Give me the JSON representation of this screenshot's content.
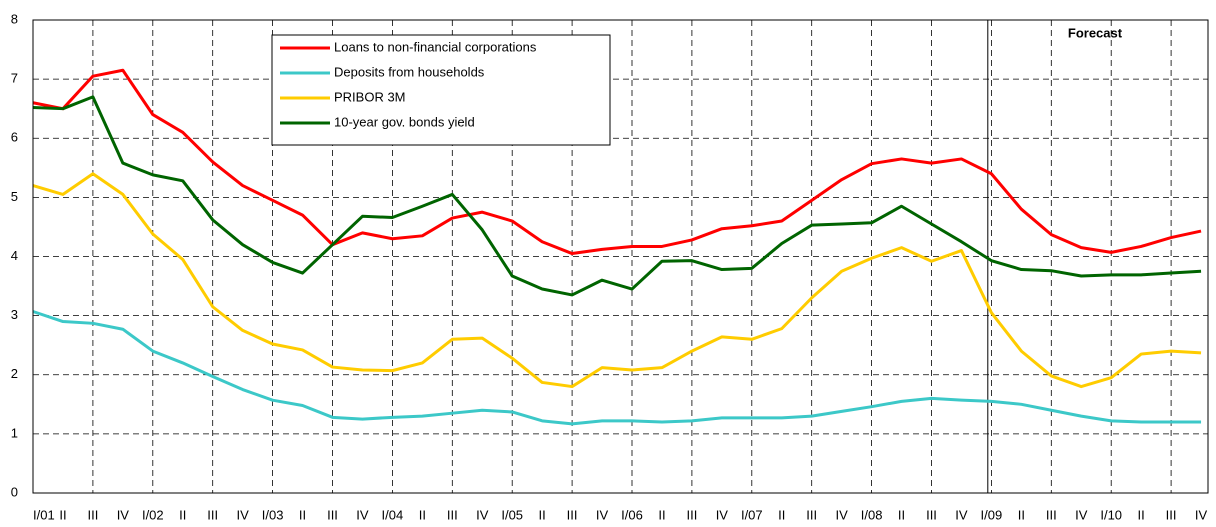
{
  "chart_data": {
    "type": "line",
    "categories": [
      "I/01",
      "II",
      "III",
      "IV",
      "I/02",
      "II",
      "III",
      "IV",
      "I/03",
      "II",
      "III",
      "IV",
      "I/04",
      "II",
      "III",
      "IV",
      "I/05",
      "II",
      "III",
      "IV",
      "I/06",
      "II",
      "III",
      "IV",
      "I/07",
      "II",
      "III",
      "IV",
      "I/08",
      "II",
      "III",
      "IV",
      "I/09",
      "II",
      "III",
      "IV",
      "I/10",
      "II",
      "III",
      "IV"
    ],
    "series": [
      {
        "name": "Loans to non-financial corporations",
        "color": "#ff0000",
        "values": [
          6.6,
          6.5,
          7.05,
          7.15,
          6.4,
          6.1,
          5.6,
          5.2,
          4.95,
          4.7,
          4.2,
          4.4,
          4.3,
          4.35,
          4.65,
          4.75,
          4.6,
          4.25,
          4.05,
          4.12,
          4.17,
          4.17,
          4.28,
          4.47,
          4.52,
          4.6,
          4.95,
          5.3,
          5.57,
          5.65,
          5.58,
          5.65,
          5.4,
          4.8,
          4.37,
          4.15,
          4.07,
          4.17,
          4.32,
          4.43
        ]
      },
      {
        "name": "Deposits from households",
        "color": "#3cc8c8",
        "values": [
          3.07,
          2.9,
          2.87,
          2.77,
          2.4,
          2.2,
          1.97,
          1.75,
          1.57,
          1.48,
          1.28,
          1.25,
          1.28,
          1.3,
          1.35,
          1.4,
          1.37,
          1.22,
          1.17,
          1.22,
          1.22,
          1.2,
          1.22,
          1.27,
          1.27,
          1.27,
          1.3,
          1.38,
          1.46,
          1.55,
          1.6,
          1.57,
          1.55,
          1.5,
          1.4,
          1.3,
          1.22,
          1.2,
          1.2,
          1.2
        ]
      },
      {
        "name": "PRIBOR 3M",
        "color": "#ffcc00",
        "values": [
          5.2,
          5.05,
          5.4,
          5.05,
          4.38,
          3.95,
          3.15,
          2.75,
          2.52,
          2.42,
          2.13,
          2.08,
          2.07,
          2.2,
          2.6,
          2.62,
          2.28,
          1.87,
          1.8,
          2.12,
          2.08,
          2.12,
          2.4,
          2.64,
          2.6,
          2.78,
          3.3,
          3.75,
          3.97,
          4.15,
          3.92,
          4.1,
          3.05,
          2.4,
          1.98,
          1.8,
          1.95,
          2.35,
          2.4,
          2.37
        ]
      },
      {
        "name": "10-year gov. bonds yield",
        "color": "#006400",
        "values": [
          6.52,
          6.5,
          6.7,
          5.58,
          5.38,
          5.28,
          4.62,
          4.2,
          3.9,
          3.72,
          4.2,
          4.68,
          4.66,
          4.85,
          5.05,
          4.45,
          3.67,
          3.45,
          3.35,
          3.6,
          3.45,
          3.92,
          3.93,
          3.78,
          3.8,
          4.22,
          4.53,
          4.55,
          4.57,
          4.85,
          4.55,
          4.25,
          3.93,
          3.78,
          3.76,
          3.67,
          3.69,
          3.69,
          3.72,
          3.75
        ]
      }
    ],
    "annotation": "Forecast",
    "ylim": [
      0,
      8
    ],
    "yticks": [
      0,
      1,
      2,
      3,
      4,
      5,
      6,
      7,
      8
    ],
    "grid": true
  }
}
